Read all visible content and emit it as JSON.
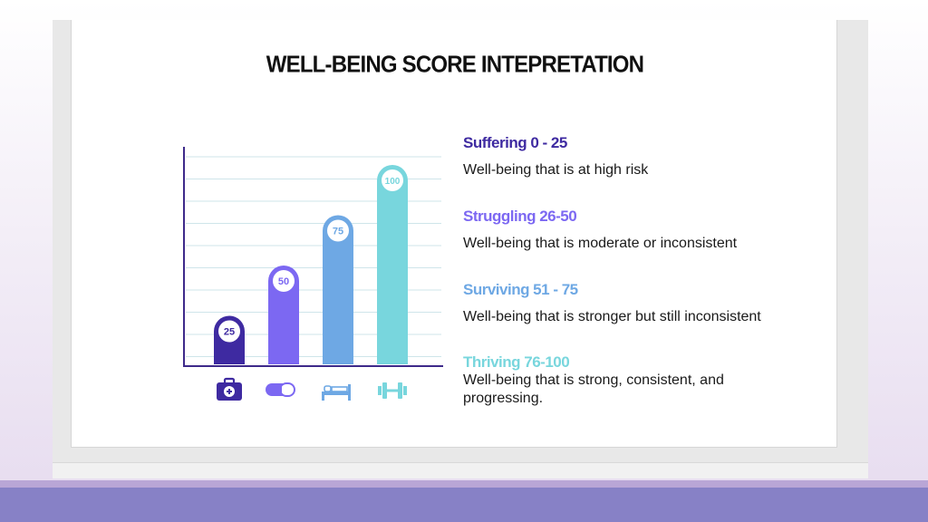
{
  "slide": {
    "title": "WELL-BEING SCORE INTEPRETATION"
  },
  "chart_data": {
    "type": "bar",
    "categories": [
      "medical-kit",
      "pill",
      "bed",
      "dumbbell"
    ],
    "values": [
      25,
      50,
      75,
      100
    ],
    "data_labels": [
      "25",
      "50",
      "75",
      "100"
    ],
    "colors": [
      "#3e2aa1",
      "#7c68f2",
      "#6ea8e4",
      "#78d6dd"
    ],
    "ylim": [
      0,
      100
    ],
    "grid": true,
    "xlabel": "",
    "ylabel": ""
  },
  "icons": [
    "medical-kit-icon",
    "pill-icon",
    "bed-icon",
    "dumbbell-icon"
  ],
  "tiers": [
    {
      "title": "Suffering 0 - 25",
      "description": "Well-being that is at high risk",
      "color": "#3e2aa1"
    },
    {
      "title": "Struggling 26-50",
      "description": "Well-being that is moderate or inconsistent",
      "color": "#7c68f2"
    },
    {
      "title": "Surviving 51 - 75",
      "description": "Well-being that is stronger but still inconsistent",
      "color": "#6ea8e4"
    },
    {
      "title": "Thriving 76-100",
      "description": "Well-being that is strong, consistent, and progressing.",
      "color": "#78d6dd"
    }
  ]
}
